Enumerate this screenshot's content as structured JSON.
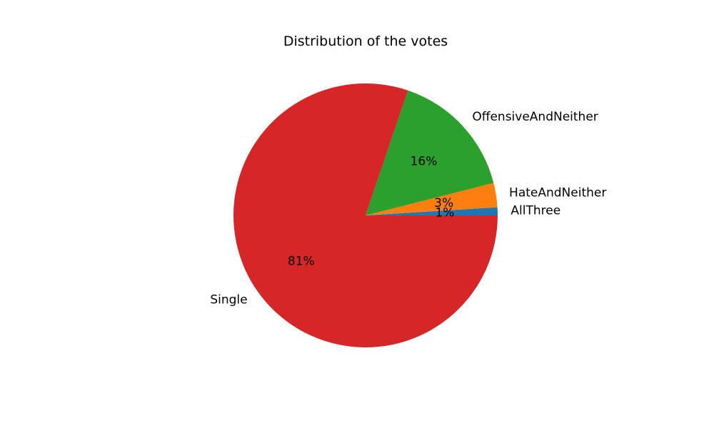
{
  "chart_data": {
    "type": "pie",
    "title": "Distribution of the votes",
    "slices": [
      {
        "label": "AllThree",
        "value": 1,
        "pct_label": "1%",
        "color": "#1f77b4"
      },
      {
        "label": "HateAndNeither",
        "value": 3,
        "pct_label": "3%",
        "color": "#ff7f0e"
      },
      {
        "label": "OffensiveAndNeither",
        "value": 16,
        "pct_label": "16%",
        "color": "#2ca02c"
      },
      {
        "label": "Single",
        "value": 81,
        "pct_label": "81%",
        "color": "#d62728"
      }
    ],
    "start_angle_deg": 0,
    "direction": "counterclockwise",
    "legend": "none"
  }
}
